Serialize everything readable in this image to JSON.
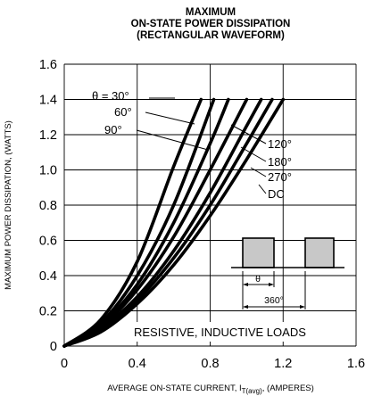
{
  "chart_data": {
    "type": "line",
    "title_lines": [
      "MAXIMUM",
      "ON-STATE POWER DISSIPATION",
      "(RECTANGULAR WAVEFORM)"
    ],
    "xlabel_main": "AVERAGE ON-STATE CURRENT, I",
    "xlabel_sub": "T(avg)",
    "xlabel_tail": ", (AMPERES)",
    "ylabel": "MAXIMUM POWER DISSIPATION, (WATTS)",
    "xlim": [
      0,
      1.6
    ],
    "ylim": [
      0,
      1.6
    ],
    "x_ticks": [
      0,
      0.4,
      0.8,
      1.2,
      1.6
    ],
    "x_tick_labels": [
      "0",
      "0.4",
      "0.8",
      "1.2",
      "1.6"
    ],
    "y_ticks": [
      0,
      0.2,
      0.4,
      0.6,
      0.8,
      1.0,
      1.2,
      1.4,
      1.6
    ],
    "y_tick_labels": [
      "0",
      "0.2",
      "0.4",
      "0.6",
      "0.8",
      "1.0",
      "1.2",
      "1.4",
      "1.6"
    ],
    "grid": true,
    "series": [
      {
        "name": "θ = 30°",
        "x": [
          0,
          0.2,
          0.4,
          0.6,
          0.75
        ],
        "y": [
          0,
          0.15,
          0.48,
          1.02,
          1.4
        ]
      },
      {
        "name": "60°",
        "x": [
          0,
          0.2,
          0.4,
          0.6,
          0.82
        ],
        "y": [
          0,
          0.13,
          0.4,
          0.8,
          1.4
        ]
      },
      {
        "name": "90°",
        "x": [
          0,
          0.2,
          0.4,
          0.6,
          0.8,
          0.9
        ],
        "y": [
          0,
          0.12,
          0.35,
          0.7,
          1.15,
          1.4
        ]
      },
      {
        "name": "120°",
        "x": [
          0,
          0.2,
          0.4,
          0.6,
          0.8,
          1.0
        ],
        "y": [
          0,
          0.11,
          0.32,
          0.62,
          1.0,
          1.4
        ]
      },
      {
        "name": "180°",
        "x": [
          0,
          0.2,
          0.4,
          0.6,
          0.8,
          1.0,
          1.08
        ],
        "y": [
          0,
          0.1,
          0.28,
          0.54,
          0.87,
          1.25,
          1.4
        ]
      },
      {
        "name": "270°",
        "x": [
          0,
          0.2,
          0.4,
          0.6,
          0.8,
          1.0,
          1.14
        ],
        "y": [
          0,
          0.09,
          0.26,
          0.5,
          0.8,
          1.15,
          1.4
        ]
      },
      {
        "name": "DC",
        "x": [
          0,
          0.2,
          0.4,
          0.6,
          0.8,
          1.0,
          1.2
        ],
        "y": [
          0,
          0.08,
          0.24,
          0.46,
          0.74,
          1.06,
          1.4
        ]
      }
    ],
    "annotations": {
      "loads": "RESISTIVE, INDUCTIVE  LOADS",
      "theta": "θ",
      "period": "360°"
    }
  }
}
